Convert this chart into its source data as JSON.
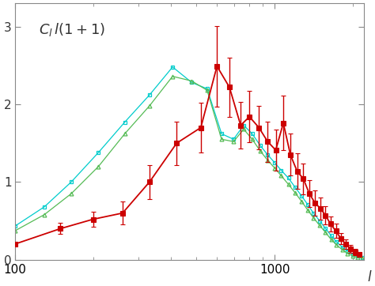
{
  "background_color": "#ffffff",
  "plot_bg_color": "#ffffff",
  "xlim_left": 100,
  "xlim_right": 2200,
  "ylim_bottom": 0,
  "ylim_top": 3.3,
  "red_l": [
    100,
    150,
    200,
    260,
    330,
    420,
    520,
    600,
    670,
    740,
    800,
    870,
    940,
    1010,
    1080,
    1150,
    1220,
    1290,
    1360,
    1430,
    1500,
    1570,
    1640,
    1720,
    1800,
    1880,
    1960,
    2040,
    2120
  ],
  "red_y": [
    0.2,
    0.4,
    0.52,
    0.6,
    1.0,
    1.5,
    1.7,
    2.49,
    2.22,
    1.73,
    1.84,
    1.7,
    1.52,
    1.41,
    1.76,
    1.35,
    1.14,
    1.04,
    0.85,
    0.73,
    0.66,
    0.57,
    0.46,
    0.37,
    0.27,
    0.2,
    0.14,
    0.1,
    0.07
  ],
  "red_yerr": [
    0.0,
    0.07,
    0.1,
    0.15,
    0.22,
    0.28,
    0.32,
    0.52,
    0.38,
    0.3,
    0.33,
    0.28,
    0.26,
    0.26,
    0.35,
    0.27,
    0.23,
    0.2,
    0.17,
    0.16,
    0.14,
    0.12,
    0.1,
    0.09,
    0.07,
    0.06,
    0.05,
    0.04,
    0.03
  ],
  "cyan_l": [
    100,
    130,
    165,
    210,
    265,
    330,
    405,
    480,
    550,
    625,
    695,
    760,
    820,
    880,
    940,
    1000,
    1060,
    1130,
    1200,
    1270,
    1340,
    1410,
    1490,
    1570,
    1650,
    1730,
    1820,
    1910,
    2000,
    2090,
    2180
  ],
  "cyan_y": [
    0.43,
    0.68,
    1.0,
    1.38,
    1.77,
    2.12,
    2.48,
    2.28,
    2.2,
    1.62,
    1.55,
    1.73,
    1.62,
    1.47,
    1.35,
    1.25,
    1.15,
    1.05,
    0.93,
    0.82,
    0.71,
    0.6,
    0.5,
    0.4,
    0.31,
    0.23,
    0.16,
    0.11,
    0.07,
    0.05,
    0.03
  ],
  "green_l": [
    100,
    130,
    165,
    210,
    265,
    330,
    405,
    480,
    550,
    625,
    695,
    760,
    820,
    880,
    940,
    1000,
    1060,
    1130,
    1200,
    1270,
    1340,
    1410,
    1490,
    1570,
    1650,
    1730,
    1820,
    1910,
    2000,
    2090,
    2180
  ],
  "green_y": [
    0.37,
    0.58,
    0.85,
    1.2,
    1.62,
    1.98,
    2.36,
    2.3,
    2.18,
    1.55,
    1.52,
    1.68,
    1.55,
    1.4,
    1.28,
    1.18,
    1.08,
    0.97,
    0.86,
    0.75,
    0.64,
    0.54,
    0.44,
    0.35,
    0.26,
    0.19,
    0.13,
    0.08,
    0.05,
    0.03,
    0.02
  ],
  "red_color": "#cc0000",
  "cyan_color": "#00cccc",
  "green_color": "#55bb55",
  "axis_color": "#888888",
  "text_color": "#333333",
  "yticks": [
    0,
    1,
    2,
    3
  ],
  "ytick_labels": [
    "0",
    "1",
    "2",
    "3"
  ],
  "xtick_labels": [
    "100",
    "1000"
  ]
}
